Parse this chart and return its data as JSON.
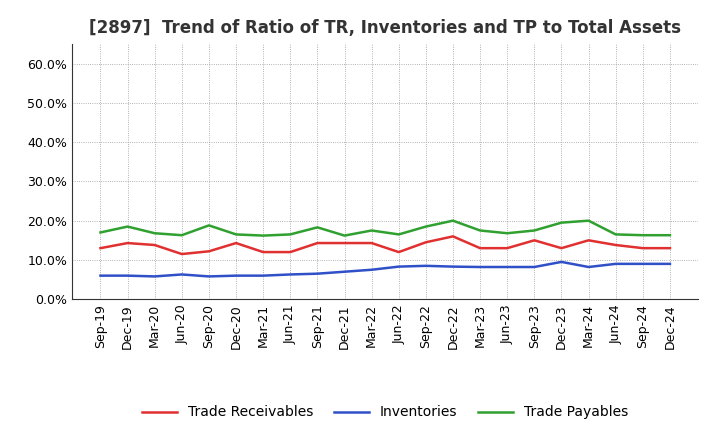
{
  "title": "[2897]  Trend of Ratio of TR, Inventories and TP to Total Assets",
  "x_labels": [
    "Sep-19",
    "Dec-19",
    "Mar-20",
    "Jun-20",
    "Sep-20",
    "Dec-20",
    "Mar-21",
    "Jun-21",
    "Sep-21",
    "Dec-21",
    "Mar-22",
    "Jun-22",
    "Sep-22",
    "Dec-22",
    "Mar-23",
    "Jun-23",
    "Sep-23",
    "Dec-23",
    "Mar-24",
    "Jun-24",
    "Sep-24",
    "Dec-24"
  ],
  "trade_receivables": [
    0.13,
    0.143,
    0.138,
    0.115,
    0.122,
    0.143,
    0.12,
    0.12,
    0.143,
    0.143,
    0.143,
    0.12,
    0.145,
    0.16,
    0.13,
    0.13,
    0.15,
    0.13,
    0.15,
    0.138,
    0.13,
    0.13
  ],
  "inventories": [
    0.06,
    0.06,
    0.058,
    0.063,
    0.058,
    0.06,
    0.06,
    0.063,
    0.065,
    0.07,
    0.075,
    0.083,
    0.085,
    0.083,
    0.082,
    0.082,
    0.082,
    0.095,
    0.082,
    0.09,
    0.09,
    0.09
  ],
  "trade_payables": [
    0.17,
    0.185,
    0.168,
    0.163,
    0.188,
    0.165,
    0.162,
    0.165,
    0.183,
    0.162,
    0.175,
    0.165,
    0.185,
    0.2,
    0.175,
    0.168,
    0.175,
    0.195,
    0.2,
    0.165,
    0.163,
    0.163
  ],
  "tr_color": "#e03030",
  "inv_color": "#3050c8",
  "tp_color": "#30a030",
  "ylim": [
    0.0,
    0.65
  ],
  "yticks": [
    0.0,
    0.1,
    0.2,
    0.3,
    0.4,
    0.5,
    0.6
  ],
  "background_color": "#ffffff",
  "grid_color": "#999999",
  "title_fontsize": 12,
  "legend_fontsize": 10,
  "tick_fontsize": 9,
  "linewidth": 1.8
}
